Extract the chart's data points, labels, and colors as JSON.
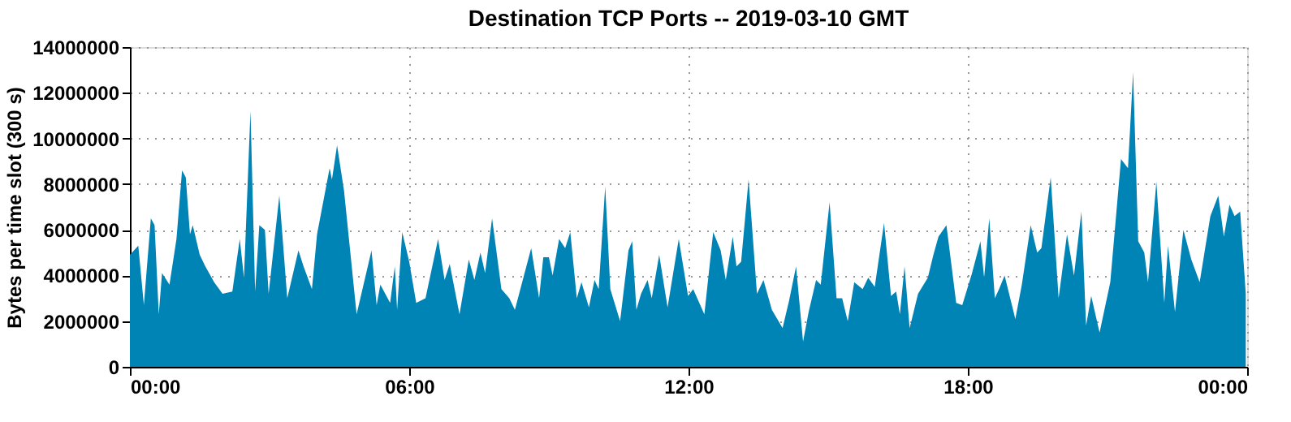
{
  "chart_data": {
    "type": "area",
    "title": "Destination TCP Ports -- 2019-03-10 GMT",
    "ylabel": "Bytes per time slot (300 s)",
    "x": [
      0,
      0.18,
      0.3,
      0.45,
      0.53,
      0.62,
      0.69,
      0.85,
      1.0,
      1.12,
      1.2,
      1.29,
      1.35,
      1.5,
      1.62,
      1.81,
      1.99,
      2.2,
      2.36,
      2.45,
      2.59,
      2.69,
      2.78,
      2.9,
      2.98,
      3.21,
      3.38,
      3.62,
      3.73,
      3.91,
      4.02,
      4.29,
      4.34,
      4.45,
      4.6,
      4.72,
      4.87,
      5.19,
      5.3,
      5.38,
      5.59,
      5.69,
      5.74,
      5.85,
      6.0,
      6.15,
      6.35,
      6.62,
      6.76,
      6.87,
      7.08,
      7.28,
      7.4,
      7.53,
      7.63,
      7.78,
      7.98,
      8.15,
      8.27,
      8.62,
      8.79,
      8.88,
      9.0,
      9.08,
      9.22,
      9.35,
      9.46,
      9.6,
      9.7,
      9.86,
      9.98,
      10.07,
      10.21,
      10.32,
      10.53,
      10.71,
      10.79,
      10.88,
      10.98,
      11.12,
      11.21,
      11.37,
      11.55,
      11.79,
      11.99,
      12.1,
      12.34,
      12.53,
      12.69,
      12.8,
      12.95,
      13.03,
      13.13,
      13.29,
      13.47,
      13.61,
      13.79,
      14.02,
      14.16,
      14.31,
      14.46,
      14.58,
      14.74,
      14.84,
      15.03,
      15.18,
      15.3,
      15.42,
      15.56,
      15.74,
      15.86,
      16.0,
      16.2,
      16.35,
      16.46,
      16.54,
      16.64,
      16.75,
      16.93,
      17.14,
      17.26,
      17.37,
      17.54,
      17.75,
      17.88,
      18.09,
      18.27,
      18.35,
      18.46,
      18.58,
      18.67,
      18.79,
      19.02,
      19.16,
      19.35,
      19.49,
      19.58,
      19.78,
      19.95,
      20.13,
      20.28,
      20.44,
      20.54,
      20.65,
      20.83,
      21.06,
      21.29,
      21.44,
      21.55,
      21.66,
      21.79,
      21.87,
      22.05,
      22.22,
      22.3,
      22.45,
      22.63,
      22.8,
      22.98,
      23.21,
      23.38,
      23.5,
      23.62,
      23.73,
      23.85,
      23.97
    ],
    "series": [
      {
        "color": "#0083b5",
        "values": [
          4900000,
          5300000,
          2700000,
          6500000,
          6200000,
          2300000,
          4100000,
          3600000,
          5600000,
          8600000,
          8300000,
          5800000,
          6200000,
          4900000,
          4400000,
          3700000,
          3200000,
          3300000,
          5600000,
          3900000,
          11200000,
          3300000,
          6200000,
          6000000,
          3200000,
          7500000,
          3000000,
          5100000,
          4400000,
          3400000,
          5800000,
          8700000,
          8200000,
          9700000,
          7700000,
          5300000,
          2300000,
          5100000,
          2700000,
          3600000,
          2800000,
          4400000,
          2500000,
          5900000,
          4600000,
          2800000,
          3000000,
          5600000,
          3800000,
          4500000,
          2300000,
          4700000,
          3800000,
          5000000,
          4100000,
          6500000,
          3400000,
          3000000,
          2500000,
          5200000,
          3000000,
          4800000,
          4800000,
          4000000,
          5600000,
          5200000,
          5900000,
          3000000,
          3700000,
          2600000,
          3800000,
          3400000,
          7900000,
          3400000,
          2000000,
          5100000,
          5500000,
          2500000,
          3200000,
          3800000,
          3000000,
          4900000,
          2600000,
          5600000,
          3100000,
          3400000,
          2300000,
          5900000,
          5100000,
          3800000,
          5700000,
          4400000,
          4600000,
          8200000,
          3200000,
          3800000,
          2500000,
          1700000,
          2900000,
          4400000,
          1100000,
          2400000,
          3800000,
          3600000,
          7200000,
          3000000,
          3000000,
          2000000,
          3700000,
          3400000,
          3900000,
          3500000,
          6300000,
          3100000,
          3300000,
          2300000,
          4400000,
          1700000,
          3200000,
          3900000,
          4900000,
          5700000,
          6200000,
          2800000,
          2700000,
          4100000,
          5500000,
          3900000,
          6500000,
          3000000,
          3400000,
          4000000,
          2100000,
          3600000,
          6200000,
          5000000,
          5200000,
          8300000,
          3000000,
          5800000,
          4000000,
          6800000,
          1800000,
          3100000,
          1500000,
          3700000,
          9100000,
          8700000,
          12900000,
          5500000,
          5000000,
          3700000,
          8100000,
          2800000,
          5300000,
          2400000,
          6000000,
          4700000,
          3700000,
          6600000,
          7500000,
          5700000,
          7100000,
          6600000,
          6800000,
          3200000
        ]
      }
    ],
    "xlim": [
      0,
      24
    ],
    "xticks": [
      {
        "value": 0,
        "label": "00:00"
      },
      {
        "value": 6,
        "label": "06:00"
      },
      {
        "value": 12,
        "label": "12:00"
      },
      {
        "value": 18,
        "label": "18:00"
      },
      {
        "value": 24,
        "label": "00:00"
      }
    ],
    "ylim": [
      0,
      14000000
    ],
    "yticks": [
      0,
      2000000,
      4000000,
      6000000,
      8000000,
      10000000,
      12000000,
      14000000
    ],
    "grid": true
  }
}
